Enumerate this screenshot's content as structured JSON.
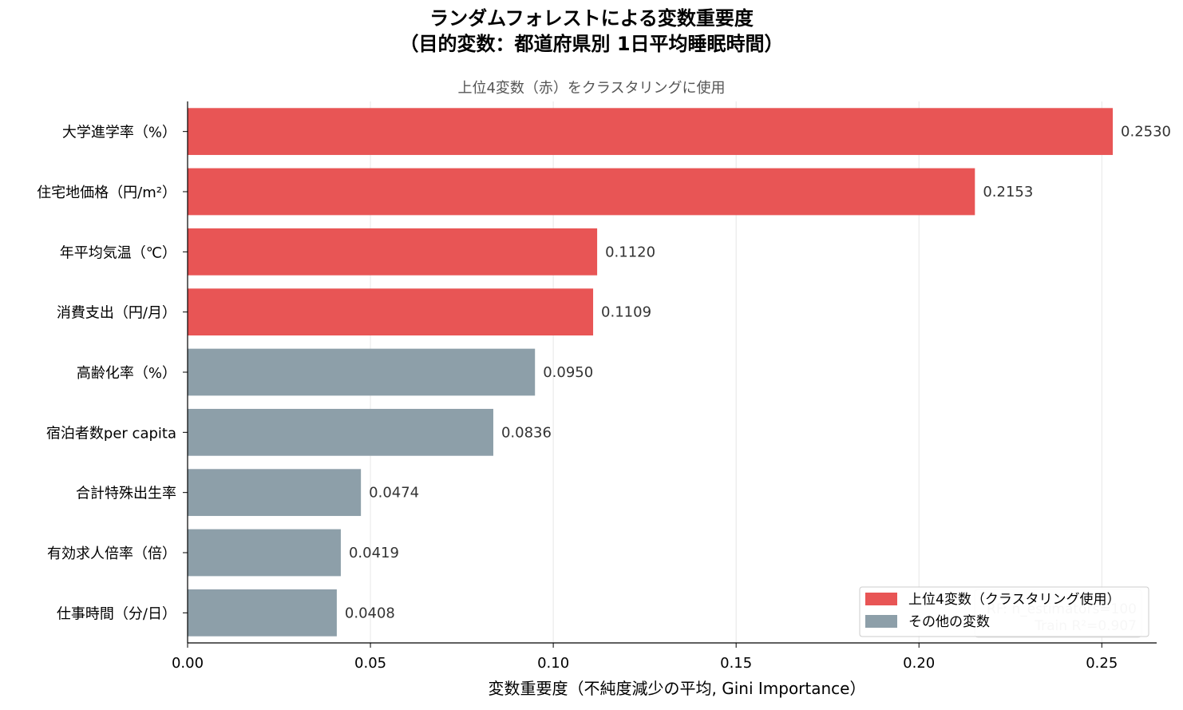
{
  "chart_data": {
    "type": "bar",
    "orientation": "horizontal",
    "title_line1": "ランダムフォレストによる変数重要度",
    "title_line2": "（目的変数：都道府県別 1日平均睡眠時間）",
    "subtitle": "上位4変数（赤）をクラスタリングに使用",
    "xlabel": "変数重要度（不純度減少の平均, Gini Importance）",
    "ylabel": "",
    "xlim": [
      0,
      0.265
    ],
    "xticks": [
      "0.00",
      "0.05",
      "0.10",
      "0.15",
      "0.20",
      "0.25"
    ],
    "xtick_values": [
      0,
      0.05,
      0.1,
      0.15,
      0.2,
      0.25
    ],
    "grid_x": true,
    "legend_position": "lower-right",
    "categories": [
      "大学進学率（%）",
      "住宅地価格（円/m²）",
      "年平均気温（℃）",
      "消費支出（円/月）",
      "高齢化率（%）",
      "宿泊者数per capita",
      "合計特殊出生率",
      "有効求人倍率（倍）",
      "仕事時間（分/日）"
    ],
    "values": [
      0.253,
      0.2153,
      0.112,
      0.1109,
      0.095,
      0.0836,
      0.0474,
      0.0419,
      0.0408
    ],
    "value_labels": [
      "0.2530",
      "0.2153",
      "0.1120",
      "0.1109",
      "0.0950",
      "0.0836",
      "0.0474",
      "0.0419",
      "0.0408"
    ],
    "groups": [
      "top4",
      "top4",
      "top4",
      "top4",
      "other",
      "other",
      "other",
      "other",
      "other"
    ],
    "legend": [
      {
        "key": "top4",
        "label": "上位4変数（クラスタリング使用）",
        "color": "#e85555"
      },
      {
        "key": "other",
        "label": "その他の変数",
        "color": "#8d9fa9"
      }
    ],
    "annotation_line1": "RF: n_estimators=100",
    "annotation_line2": "Train R²=0.907"
  }
}
